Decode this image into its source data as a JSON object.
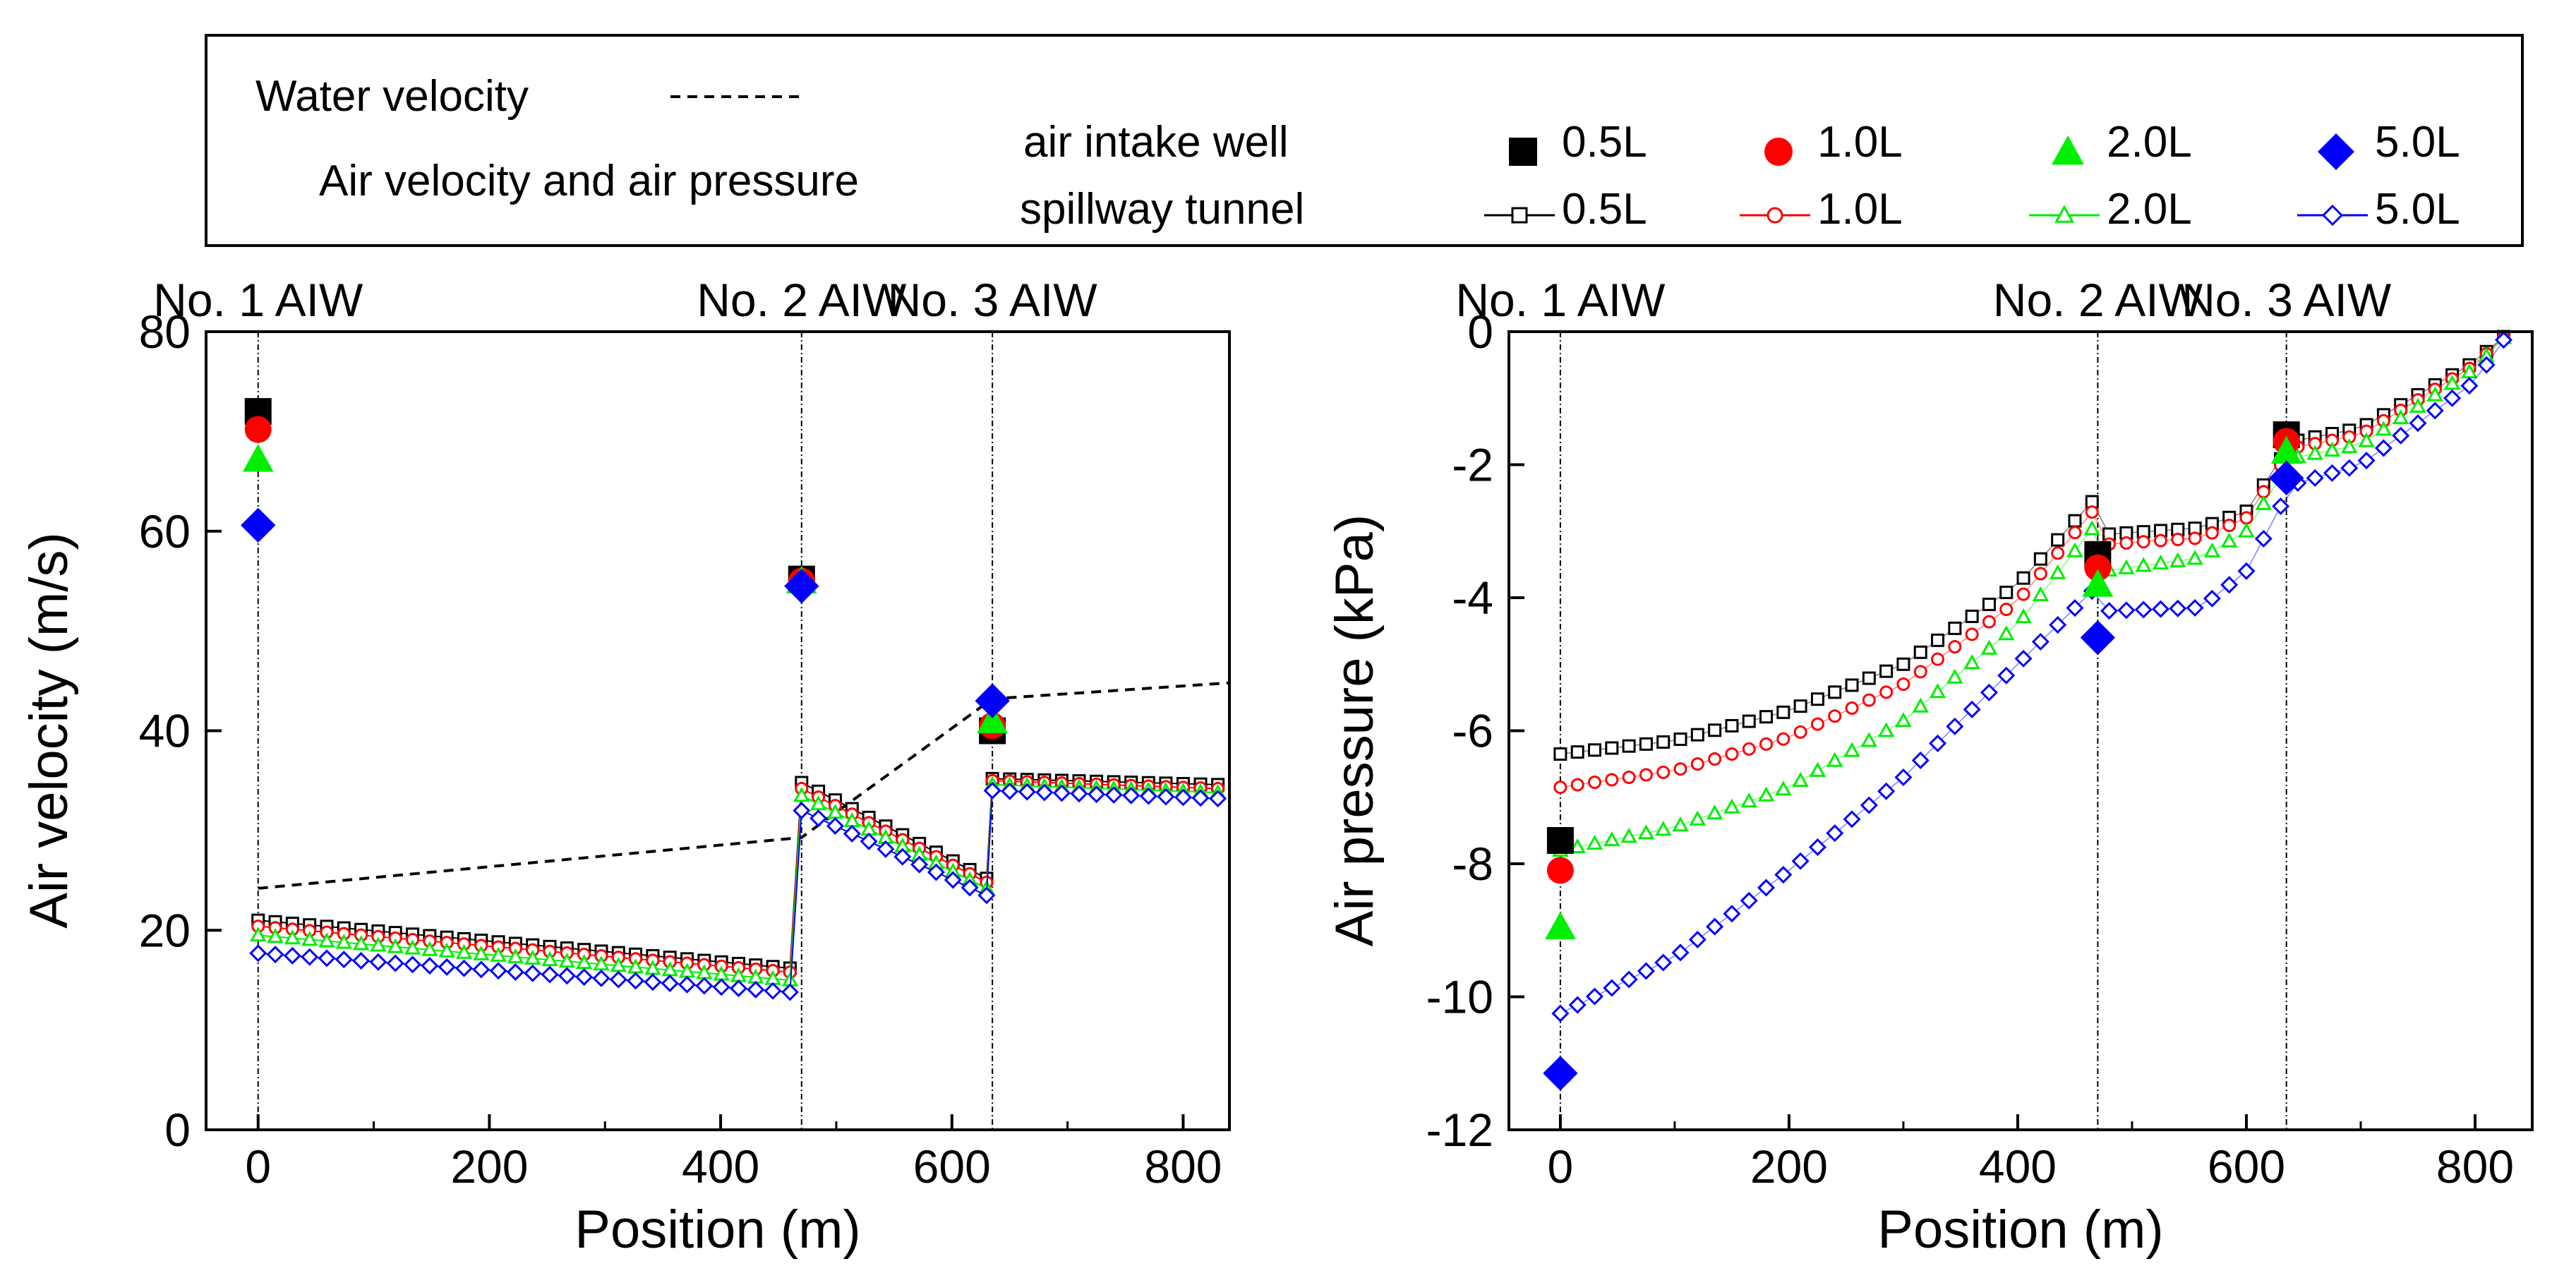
{
  "legend": {
    "water_label": "Water velocity",
    "air_label": "Air velocity and air pressure",
    "row1_label": "air intake well",
    "row2_label": "spillway tunnel",
    "cases": [
      "0.5L",
      "1.0L",
      "2.0L",
      "5.0L"
    ]
  },
  "colors": {
    "0.5L": "#000000",
    "1.0L": "#ff0000",
    "2.0L": "#00ee00",
    "5.0L": "#0000ff",
    "water": "#000000"
  },
  "chart_data": [
    {
      "type": "scatter",
      "title": "",
      "xlabel": "Position (m)",
      "ylabel": "Air velocity (m/s)",
      "xlim": [
        -45,
        840
      ],
      "ylim": [
        0,
        80
      ],
      "xticks": [
        0,
        200,
        400,
        600,
        800
      ],
      "yticks": [
        0,
        20,
        40,
        60,
        80
      ],
      "aiw_positions": [
        0,
        470,
        635
      ],
      "aiw_labels": [
        "No. 1 AIW",
        "No. 2 AIW",
        "No. 3 AIW"
      ],
      "water_velocity": {
        "name": "Water velocity",
        "x": [
          0,
          470,
          635,
          840
        ],
        "y": [
          24.2,
          29.3,
          43.2,
          44.8
        ]
      },
      "intake_well": [
        {
          "name": "0.5L",
          "x": [
            0,
            470,
            635
          ],
          "y": [
            72,
            55.2,
            40
          ]
        },
        {
          "name": "1.0L",
          "x": [
            0,
            470,
            635
          ],
          "y": [
            70.2,
            55,
            40.5
          ]
        },
        {
          "name": "2.0L",
          "x": [
            0,
            470,
            635
          ],
          "y": [
            67.2,
            55,
            41
          ]
        },
        {
          "name": "5.0L",
          "x": [
            0,
            470,
            635
          ],
          "y": [
            60.6,
            54.5,
            43
          ]
        }
      ],
      "tunnel_segments": [
        {
          "name": "0.5L",
          "segments": [
            {
              "x": [
                0,
                460
              ],
              "y": [
                21,
                16.2
              ]
            },
            {
              "x": [
                470,
                630
              ],
              "y": [
                34.8,
                25.2
              ]
            },
            {
              "x": [
                635,
                830
              ],
              "y": [
                35.2,
                34.6
              ]
            }
          ]
        },
        {
          "name": "1.0L",
          "segments": [
            {
              "x": [
                0,
                460
              ],
              "y": [
                20.4,
                15.8
              ]
            },
            {
              "x": [
                470,
                630
              ],
              "y": [
                34.2,
                24.8
              ]
            },
            {
              "x": [
                635,
                830
              ],
              "y": [
                35,
                34.2
              ]
            }
          ]
        },
        {
          "name": "2.0L",
          "segments": [
            {
              "x": [
                0,
                460
              ],
              "y": [
                19.5,
                15
              ]
            },
            {
              "x": [
                470,
                630
              ],
              "y": [
                33.5,
                24.2
              ]
            },
            {
              "x": [
                635,
                830
              ],
              "y": [
                34.6,
                33.8
              ]
            }
          ]
        },
        {
          "name": "5.0L",
          "segments": [
            {
              "x": [
                0,
                460
              ],
              "y": [
                17.7,
                13.8
              ]
            },
            {
              "x": [
                470,
                630
              ],
              "y": [
                32,
                23.5
              ]
            },
            {
              "x": [
                635,
                830
              ],
              "y": [
                34,
                33.2
              ]
            }
          ]
        }
      ]
    },
    {
      "type": "scatter",
      "title": "",
      "xlabel": "Position (m)",
      "ylabel": "Air pressure (kPa)",
      "xlim": [
        -45,
        850
      ],
      "ylim": [
        -12,
        0
      ],
      "xticks": [
        0,
        200,
        400,
        600,
        800
      ],
      "yticks": [
        0,
        -2,
        -4,
        -6,
        -8,
        -10,
        -12
      ],
      "aiw_positions": [
        0,
        470,
        635
      ],
      "aiw_labels": [
        "No. 1 AIW",
        "No. 2 AIW",
        "No. 3 AIW"
      ],
      "intake_well": [
        {
          "name": "0.5L",
          "x": [
            0,
            470,
            635
          ],
          "y": [
            -7.65,
            -3.35,
            -1.55
          ]
        },
        {
          "name": "1.0L",
          "x": [
            0,
            470,
            635
          ],
          "y": [
            -8.1,
            -3.55,
            -1.65
          ]
        },
        {
          "name": "2.0L",
          "x": [
            0,
            470,
            635
          ],
          "y": [
            -8.95,
            -3.8,
            -1.8
          ]
        },
        {
          "name": "5.0L",
          "x": [
            0,
            470,
            635
          ],
          "y": [
            -11.15,
            -4.6,
            -2.2
          ]
        }
      ],
      "tunnel_profiles": [
        {
          "name": "0.5L",
          "x": [
            0,
            100,
            200,
            300,
            400,
            468,
            475,
            560,
            600,
            640,
            700,
            800,
            830
          ],
          "y": [
            -6.35,
            -6.15,
            -5.7,
            -5.0,
            -3.8,
            -2.5,
            -3.05,
            -2.95,
            -2.7,
            -1.65,
            -1.45,
            -0.45,
            0
          ]
        },
        {
          "name": "1.0L",
          "x": [
            0,
            100,
            200,
            300,
            400,
            468,
            475,
            560,
            600,
            640,
            700,
            800,
            830
          ],
          "y": [
            -6.85,
            -6.6,
            -6.1,
            -5.3,
            -4.05,
            -2.65,
            -3.2,
            -3.1,
            -2.8,
            -1.75,
            -1.55,
            -0.5,
            0
          ]
        },
        {
          "name": "2.0L",
          "x": [
            0,
            100,
            200,
            300,
            400,
            468,
            475,
            560,
            600,
            640,
            700,
            800,
            830
          ],
          "y": [
            -7.8,
            -7.45,
            -6.85,
            -5.85,
            -4.4,
            -2.9,
            -3.6,
            -3.4,
            -3.0,
            -1.9,
            -1.7,
            -0.55,
            0
          ]
        },
        {
          "name": "5.0L",
          "x": [
            0,
            100,
            200,
            300,
            400,
            468,
            475,
            560,
            600,
            640,
            700,
            800,
            830
          ],
          "y": [
            -10.25,
            -9.4,
            -8.1,
            -6.7,
            -5.0,
            -3.85,
            -4.2,
            -4.15,
            -3.6,
            -2.3,
            -2.0,
            -0.75,
            0
          ]
        }
      ]
    }
  ]
}
